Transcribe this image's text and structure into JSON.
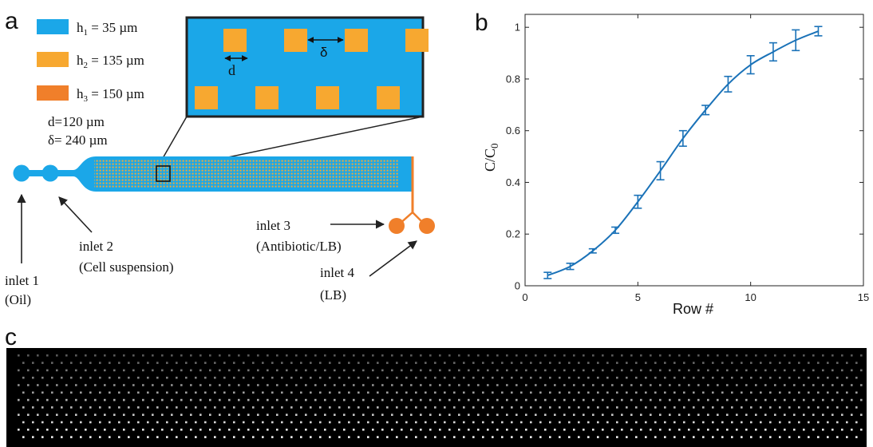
{
  "panel_a": {
    "label": "a",
    "legend": [
      {
        "color": "#1ba7e8",
        "sym": "h",
        "sub": "1",
        "value": " = 35 µm"
      },
      {
        "color": "#f7a830",
        "sym": "h",
        "sub": "2",
        "value": " = 135 µm"
      },
      {
        "color": "#f07f2a",
        "sym": "h",
        "sub": "3",
        "value": " = 150 µm"
      }
    ],
    "d_param": "d=120 µm",
    "delta_param": "δ= 240 µm",
    "inset_d_label": "d",
    "inset_delta_label": "δ",
    "inlets": [
      {
        "name": "inlet 1",
        "desc": "(Oil)"
      },
      {
        "name": "inlet 2",
        "desc": "(Cell suspension)"
      },
      {
        "name": "inlet 3",
        "desc": "(Antibiotic/LB)"
      },
      {
        "name": "inlet 4",
        "desc": "(LB)"
      }
    ],
    "colors": {
      "channel": "#1ba7e8",
      "trap": "#f7a830",
      "outlet": "#f07f2a"
    }
  },
  "panel_b": {
    "label": "b"
  },
  "panel_c": {
    "label": "c"
  },
  "chart_data": {
    "type": "line",
    "xlabel": "Row #",
    "ylabel_main": "C/C",
    "ylabel_sub": "0",
    "xlim": [
      0,
      15
    ],
    "ylim": [
      0,
      1.05
    ],
    "xticks": [
      0,
      5,
      10,
      15
    ],
    "yticks": [
      0,
      0.2,
      0.4,
      0.6,
      0.8,
      1
    ],
    "grid": false,
    "series_color": "#1a72b8",
    "x": [
      1,
      2,
      3,
      4,
      5,
      6,
      7,
      8,
      9,
      10,
      11,
      12,
      13
    ],
    "y": [
      0.04,
      0.075,
      0.135,
      0.215,
      0.325,
      0.445,
      0.57,
      0.68,
      0.78,
      0.855,
      0.905,
      0.95,
      0.985
    ],
    "err": [
      0.012,
      0.012,
      0.008,
      0.012,
      0.025,
      0.035,
      0.03,
      0.018,
      0.03,
      0.035,
      0.035,
      0.04,
      0.018
    ]
  }
}
